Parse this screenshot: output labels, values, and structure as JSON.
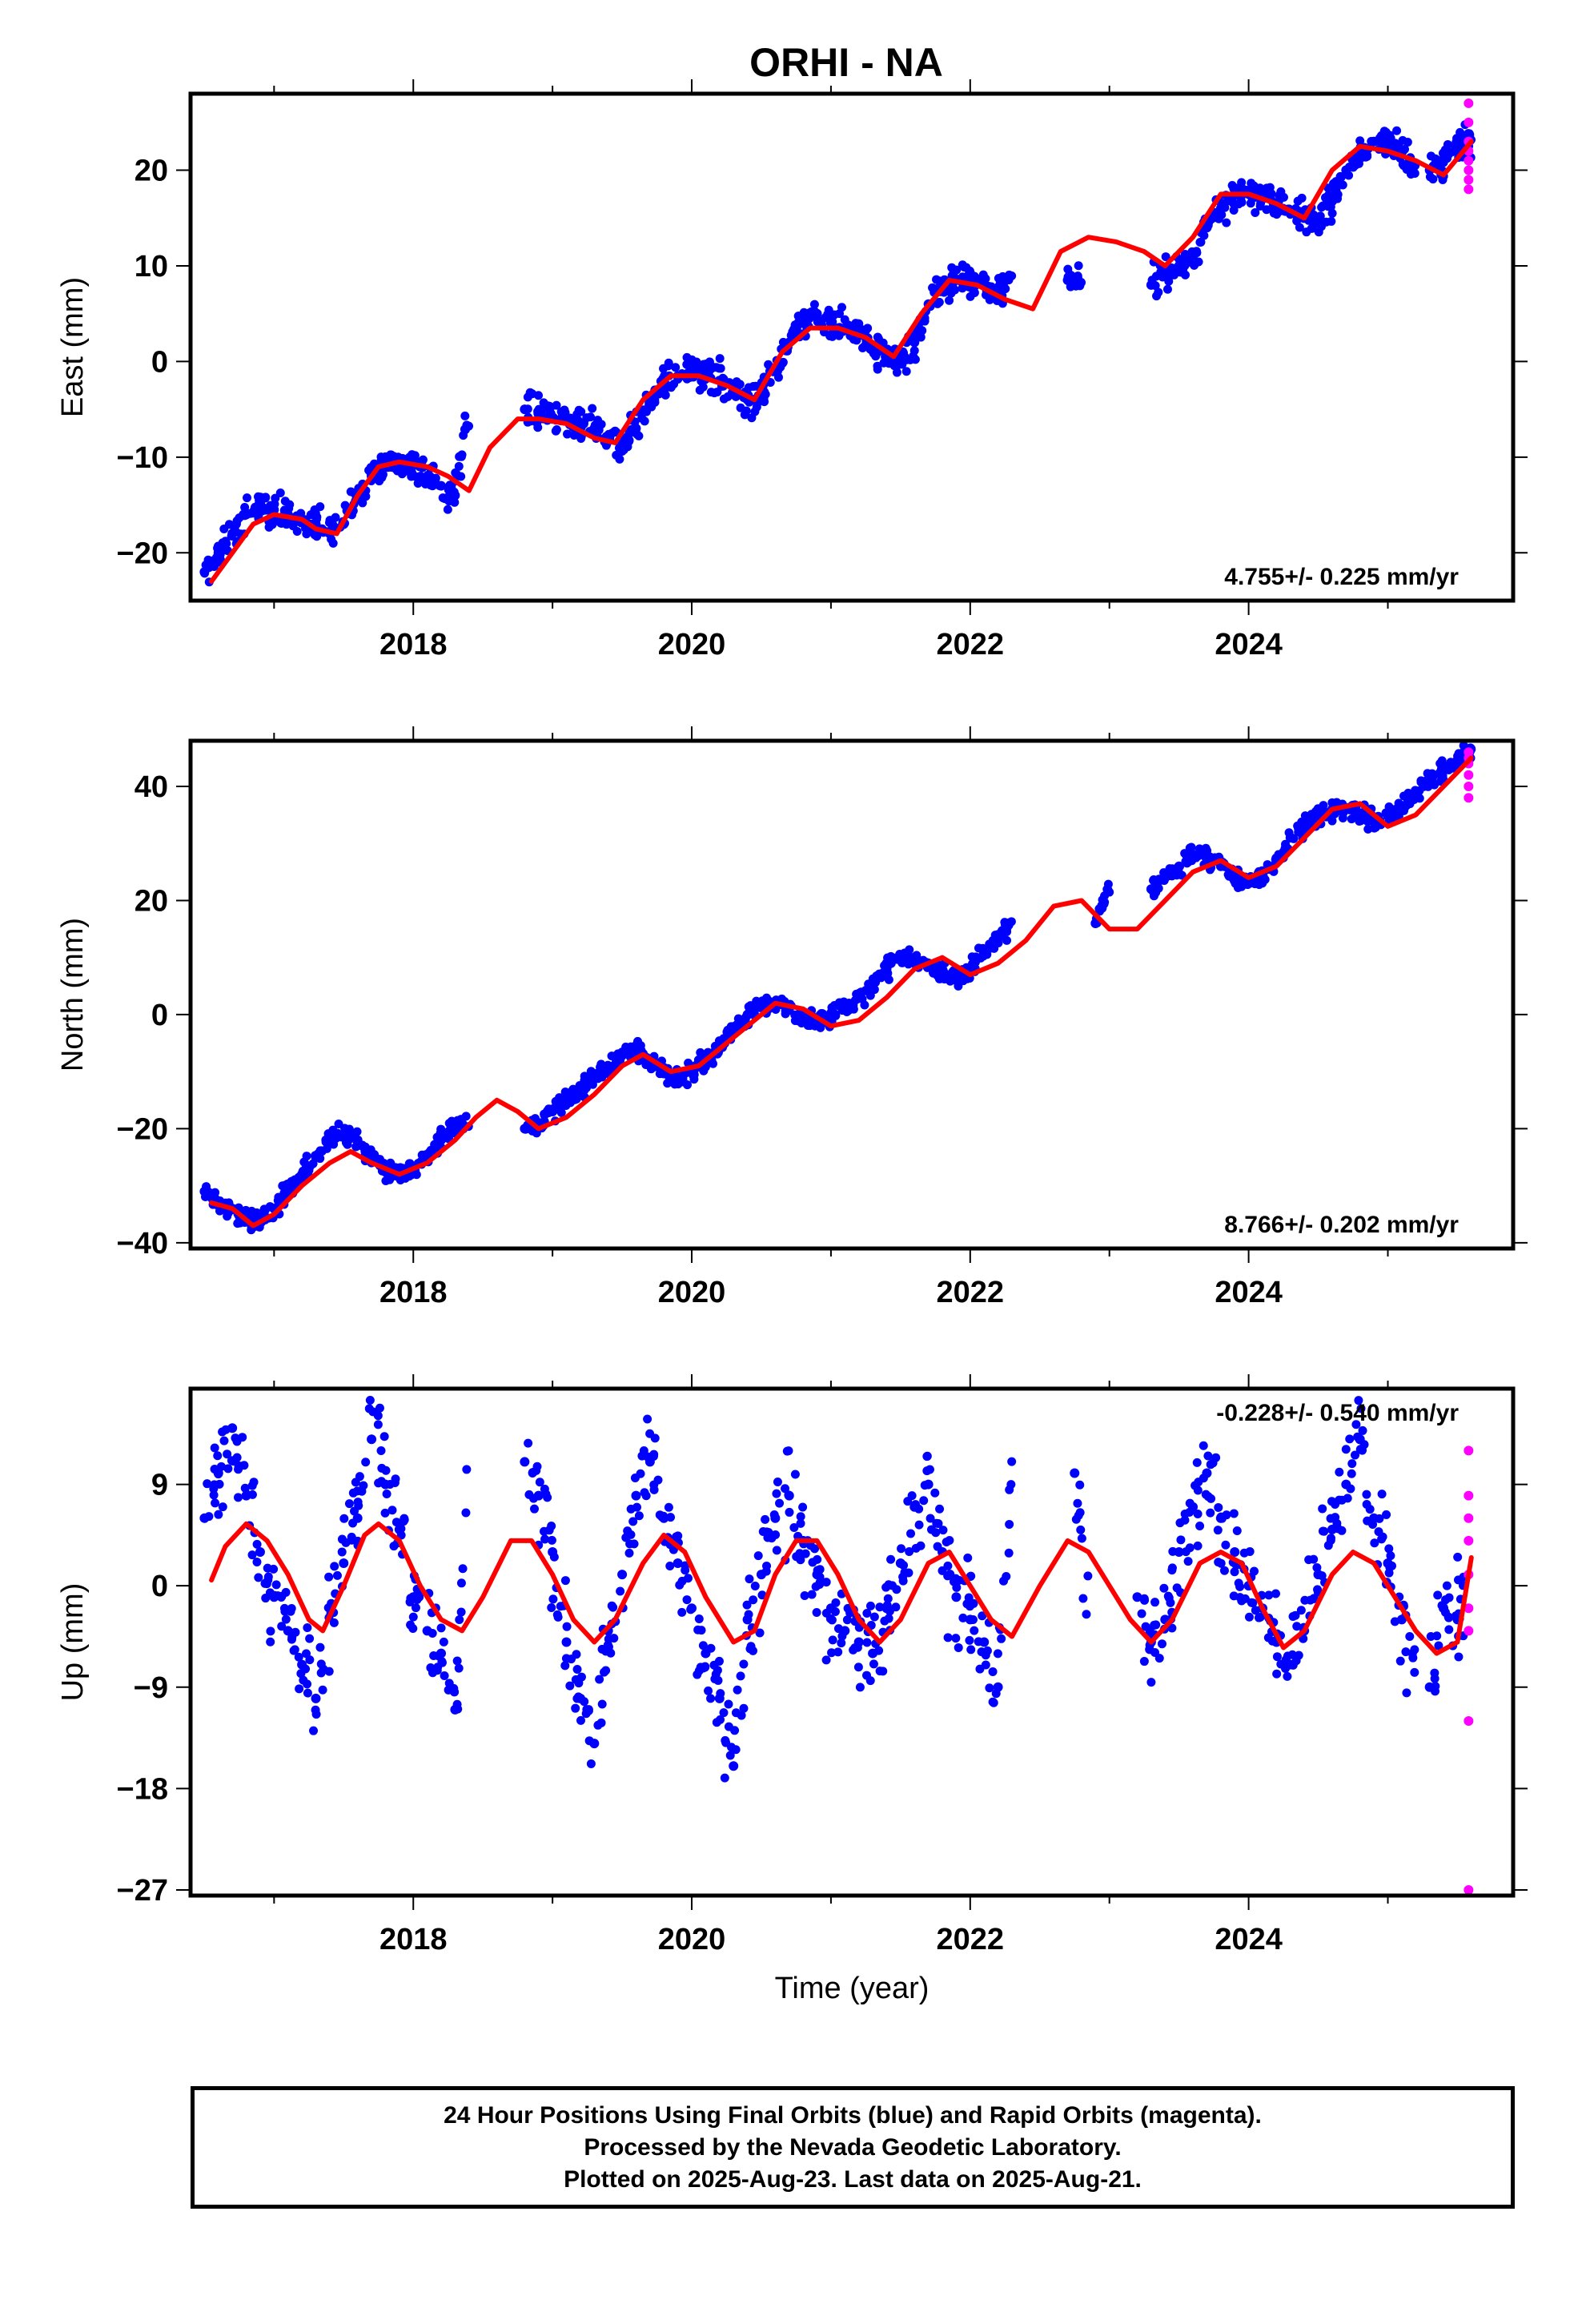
{
  "title": "ORHI - NA",
  "footer": {
    "line1": "24 Hour Positions Using Final Orbits (blue) and Rapid Orbits (magenta).",
    "line2": "Processed by the Nevada Geodetic Laboratory.",
    "line3": "Plotted on 2025-Aug-23. Last data on 2025-Aug-21."
  },
  "colors": {
    "final_orbits": "#0000ff",
    "rapid_orbits": "#ff00ff",
    "model_fit": "#ff0000",
    "frame": "#000000"
  },
  "chart_data": [
    {
      "type": "scatter",
      "panel": "east",
      "ylabel": "East (mm)",
      "xlabel": "",
      "xlim": [
        2016.4,
        2025.9
      ],
      "ylim": [
        -25,
        28
      ],
      "xticks": [
        2018,
        2020,
        2022,
        2024
      ],
      "yticks": [
        -20,
        -10,
        0,
        10,
        20
      ],
      "rate_text": "4.755+/- 0.225 mm/yr",
      "grid": false,
      "series": [
        {
          "kind": "model_fit",
          "x": [
            2016.55,
            2016.85,
            2017.0,
            2017.2,
            2017.3,
            2017.45,
            2017.6,
            2017.75,
            2017.9,
            2018.1,
            2018.25,
            2018.4,
            2018.55,
            2018.75,
            2018.9,
            2019.1,
            2019.3,
            2019.45,
            2019.65,
            2019.85,
            2020.05,
            2020.25,
            2020.45,
            2020.65,
            2020.85,
            2021.05,
            2021.25,
            2021.45,
            2021.65,
            2021.85,
            2022.05,
            2022.25,
            2022.45,
            2022.65,
            2022.85,
            2023.05,
            2023.25,
            2023.4,
            2023.6,
            2023.8,
            2024.0,
            2024.2,
            2024.4,
            2024.6,
            2024.8,
            2025.0,
            2025.2,
            2025.4,
            2025.6
          ],
          "y": [
            -23,
            -17,
            -16,
            -16.5,
            -17.5,
            -18,
            -14,
            -11,
            -10.5,
            -11,
            -12,
            -13.5,
            -9,
            -6,
            -6,
            -6.5,
            -8,
            -8.5,
            -4,
            -1.5,
            -1.5,
            -2.5,
            -4,
            1,
            3.5,
            3.5,
            2.5,
            0.5,
            5,
            8.5,
            8,
            6.5,
            5.5,
            11.5,
            13,
            12.5,
            11.5,
            10,
            13,
            17.5,
            17.5,
            16.5,
            15,
            20,
            22.5,
            22,
            21,
            19.5,
            23
          ]
        },
        {
          "kind": "final",
          "x": [
            2016.5,
            2016.6,
            2016.7,
            2016.8,
            2016.9,
            2017.0,
            2017.1,
            2017.2,
            2017.3,
            2017.4,
            2017.5,
            2017.6,
            2017.7,
            2017.8,
            2017.9,
            2018.0,
            2018.1,
            2018.2,
            2018.3,
            2018.8,
            2018.9,
            2019.0,
            2019.1,
            2019.2,
            2019.3,
            2019.4,
            2019.5,
            2019.6,
            2019.7,
            2019.8,
            2019.9,
            2020.0,
            2020.1,
            2020.2,
            2020.3,
            2020.4,
            2020.5,
            2020.6,
            2020.7,
            2020.8,
            2020.9,
            2021.0,
            2021.1,
            2021.2,
            2021.3,
            2021.4,
            2021.5,
            2021.6,
            2021.7,
            2021.8,
            2021.9,
            2022.0,
            2022.1,
            2022.2,
            2022.7,
            2023.3,
            2023.4,
            2023.5,
            2023.6,
            2023.7,
            2023.8,
            2023.9,
            2024.0,
            2024.1,
            2024.2,
            2024.3,
            2024.4,
            2024.5,
            2024.6,
            2024.7,
            2024.8,
            2024.9,
            2025.0,
            2025.1,
            2025.3,
            2025.4,
            2025.5,
            2025.55
          ],
          "y": [
            -22,
            -20,
            -18,
            -16,
            -15,
            -15.5,
            -16,
            -16.5,
            -17,
            -18,
            -17,
            -14,
            -12,
            -10,
            -11,
            -10.5,
            -12,
            -13,
            -14,
            -5,
            -5.5,
            -6,
            -6,
            -6.5,
            -7,
            -8,
            -8.5,
            -7,
            -4,
            -2,
            -1.5,
            -1,
            -1.5,
            -2,
            -3,
            -4,
            -3.5,
            -1,
            2,
            4,
            5,
            4,
            3.5,
            3,
            1.5,
            0.5,
            0,
            2,
            6,
            7.5,
            8.5,
            8.5,
            8,
            7,
            8.5,
            8,
            9,
            10,
            11,
            14,
            16,
            17.5,
            17.5,
            17,
            16.5,
            15.5,
            15,
            14.5,
            17,
            20,
            22,
            23,
            23,
            22,
            20,
            21,
            22,
            23
          ]
        },
        {
          "kind": "rapid",
          "x": [
            2025.58,
            2025.58,
            2025.58,
            2025.58,
            2025.58,
            2025.58,
            2025.58,
            2025.58
          ],
          "y": [
            27,
            25,
            23,
            22,
            21,
            20,
            19,
            18
          ]
        }
      ]
    },
    {
      "type": "scatter",
      "panel": "north",
      "ylabel": "North (mm)",
      "xlabel": "",
      "xlim": [
        2016.4,
        2025.9
      ],
      "ylim": [
        -41,
        48
      ],
      "xticks": [
        2018,
        2020,
        2022,
        2024
      ],
      "yticks": [
        -40,
        -20,
        0,
        20,
        40
      ],
      "rate_text": "8.766+/- 0.202 mm/yr",
      "grid": false,
      "series": [
        {
          "kind": "model_fit",
          "x": [
            2016.55,
            2016.7,
            2016.85,
            2017.0,
            2017.2,
            2017.4,
            2017.55,
            2017.7,
            2017.9,
            2018.1,
            2018.3,
            2018.45,
            2018.6,
            2018.75,
            2018.9,
            2019.1,
            2019.3,
            2019.5,
            2019.65,
            2019.85,
            2020.05,
            2020.25,
            2020.45,
            2020.6,
            2020.8,
            2021.0,
            2021.2,
            2021.4,
            2021.6,
            2021.8,
            2022.0,
            2022.2,
            2022.4,
            2022.6,
            2022.8,
            2023.0,
            2023.2,
            2023.4,
            2023.6,
            2023.8,
            2024.0,
            2024.2,
            2024.4,
            2024.6,
            2024.8,
            2025.0,
            2025.2,
            2025.4,
            2025.6
          ],
          "y": [
            -33,
            -34,
            -37,
            -35,
            -30,
            -26,
            -24,
            -26,
            -28,
            -26,
            -22,
            -18,
            -15,
            -17,
            -20,
            -18,
            -14,
            -9,
            -7,
            -10,
            -9,
            -5,
            -1,
            2,
            1,
            -2,
            -1,
            3,
            8,
            10,
            7,
            9,
            13,
            19,
            20,
            15,
            15,
            20,
            25,
            27,
            24,
            26,
            31,
            36,
            37,
            33,
            35,
            40,
            45
          ]
        },
        {
          "kind": "final",
          "x": [
            2016.5,
            2016.6,
            2016.7,
            2016.8,
            2016.9,
            2017.0,
            2017.1,
            2017.2,
            2017.3,
            2017.4,
            2017.5,
            2017.6,
            2017.7,
            2017.8,
            2017.9,
            2018.0,
            2018.1,
            2018.2,
            2018.3,
            2018.8,
            2018.9,
            2019.0,
            2019.1,
            2019.2,
            2019.3,
            2019.4,
            2019.5,
            2019.6,
            2019.7,
            2019.8,
            2019.9,
            2020.0,
            2020.1,
            2020.2,
            2020.3,
            2020.4,
            2020.5,
            2020.6,
            2020.7,
            2020.8,
            2020.9,
            2021.0,
            2021.1,
            2021.2,
            2021.3,
            2021.4,
            2021.5,
            2021.6,
            2021.7,
            2021.8,
            2021.9,
            2022.0,
            2022.1,
            2022.2,
            2022.9,
            2023.3,
            2023.4,
            2023.5,
            2023.6,
            2023.7,
            2023.8,
            2023.9,
            2024.0,
            2024.1,
            2024.2,
            2024.3,
            2024.4,
            2024.5,
            2024.6,
            2024.7,
            2024.8,
            2024.9,
            2025.0,
            2025.1,
            2025.2,
            2025.3,
            2025.4,
            2025.5,
            2025.55
          ],
          "y": [
            -31,
            -33,
            -34,
            -36,
            -36,
            -34,
            -31,
            -28,
            -25,
            -22,
            -21,
            -22,
            -25,
            -27,
            -28,
            -27,
            -25,
            -22,
            -19,
            -20,
            -19,
            -17,
            -15,
            -13,
            -11,
            -9,
            -7,
            -6,
            -8,
            -10,
            -11,
            -10,
            -8,
            -6,
            -3,
            0,
            2,
            2,
            1,
            -1,
            -1,
            0,
            1,
            3,
            5,
            8,
            10,
            10,
            9,
            7,
            6,
            8,
            11,
            14,
            16,
            22,
            24,
            26,
            28,
            28,
            26,
            24,
            23,
            24,
            27,
            31,
            33,
            35,
            36,
            36,
            35,
            34,
            35,
            36,
            39,
            41,
            43,
            44,
            46
          ]
        },
        {
          "kind": "rapid",
          "x": [
            2025.58,
            2025.58,
            2025.58,
            2025.58,
            2025.58,
            2025.58
          ],
          "y": [
            46,
            45,
            44,
            42,
            40,
            38
          ]
        }
      ]
    },
    {
      "type": "scatter",
      "panel": "up",
      "ylabel": "Up (mm)",
      "xlabel": "Time (year)",
      "xlim": [
        2016.4,
        2025.9
      ],
      "ylim": [
        -27.5,
        17.5
      ],
      "xticks": [
        2018,
        2020,
        2022,
        2024
      ],
      "yticks": [
        -27,
        -18,
        -9,
        0,
        9
      ],
      "rate_text": "-0.228+/- 0.540 mm/yr",
      "grid": false,
      "series": [
        {
          "kind": "model_fit",
          "x": [
            2016.55,
            2016.65,
            2016.8,
            2016.95,
            2017.1,
            2017.25,
            2017.35,
            2017.5,
            2017.65,
            2017.75,
            2017.9,
            2018.05,
            2018.2,
            2018.35,
            2018.5,
            2018.7,
            2018.85,
            2019.0,
            2019.15,
            2019.3,
            2019.45,
            2019.65,
            2019.8,
            2019.95,
            2020.1,
            2020.3,
            2020.45,
            2020.6,
            2020.75,
            2020.9,
            2021.05,
            2021.2,
            2021.35,
            2021.5,
            2021.7,
            2021.85,
            2022.0,
            2022.15,
            2022.3,
            2022.5,
            2022.7,
            2022.85,
            2023.0,
            2023.15,
            2023.3,
            2023.45,
            2023.65,
            2023.8,
            2023.95,
            2024.1,
            2024.25,
            2024.4,
            2024.6,
            2024.75,
            2024.9,
            2025.05,
            2025.2,
            2025.35,
            2025.5,
            2025.6
          ],
          "y": [
            0.5,
            3.5,
            5.5,
            4,
            1,
            -3,
            -4,
            0,
            4.5,
            5.5,
            4,
            0,
            -3,
            -4,
            -1,
            4,
            4,
            1,
            -3,
            -5,
            -3,
            2,
            4.5,
            3,
            -1,
            -5,
            -4,
            1,
            4,
            4,
            1,
            -3,
            -5,
            -3,
            2,
            3,
            0,
            -3,
            -4.5,
            0,
            4,
            3,
            0,
            -3,
            -5,
            -3,
            2,
            3,
            2,
            -2,
            -5.5,
            -4,
            1,
            3,
            2,
            -1,
            -4,
            -6,
            -5,
            2.5
          ]
        },
        {
          "kind": "final",
          "x": [
            2016.5,
            2016.6,
            2016.7,
            2016.8,
            2016.9,
            2017.0,
            2017.1,
            2017.2,
            2017.3,
            2017.4,
            2017.5,
            2017.6,
            2017.7,
            2017.8,
            2017.9,
            2018.0,
            2018.1,
            2018.2,
            2018.3,
            2018.8,
            2018.9,
            2019.0,
            2019.1,
            2019.2,
            2019.3,
            2019.4,
            2019.5,
            2019.6,
            2019.7,
            2019.8,
            2019.9,
            2020.0,
            2020.1,
            2020.2,
            2020.3,
            2020.4,
            2020.5,
            2020.6,
            2020.7,
            2020.8,
            2020.9,
            2021.0,
            2021.1,
            2021.2,
            2021.3,
            2021.4,
            2021.5,
            2021.6,
            2021.7,
            2021.8,
            2021.9,
            2022.0,
            2022.1,
            2022.2,
            2022.75,
            2023.2,
            2023.3,
            2023.4,
            2023.5,
            2023.6,
            2023.7,
            2023.8,
            2023.9,
            2024.0,
            2024.1,
            2024.2,
            2024.3,
            2024.4,
            2024.5,
            2024.6,
            2024.7,
            2024.8,
            2024.9,
            2025.0,
            2025.1,
            2025.3,
            2025.4,
            2025.5
          ],
          "y": [
            6,
            10,
            14,
            8,
            3,
            -1,
            -4,
            -7,
            -10,
            -2,
            2,
            6,
            13,
            9,
            5,
            -1,
            -4,
            -6,
            -11,
            11,
            8,
            3,
            -5,
            -10,
            -14,
            -4,
            1,
            8,
            11,
            6,
            2,
            -2,
            -6,
            -10,
            -16,
            -3,
            1,
            6,
            8,
            4,
            1,
            -2,
            -4,
            -5,
            -6,
            -2,
            2,
            7,
            9,
            3,
            -1,
            -3,
            -5,
            -9,
            10,
            -1,
            -5,
            -3,
            3,
            7,
            10,
            6,
            3,
            0,
            -2,
            -5,
            -7,
            -4,
            1,
            5,
            9,
            13,
            6,
            2,
            -3,
            -9,
            -2,
            -3
          ]
        },
        {
          "kind": "rapid",
          "x": [
            2025.58,
            2025.58,
            2025.58,
            2025.58,
            2025.58,
            2025.58,
            2025.58,
            2025.58,
            2025.58
          ],
          "y": [
            12,
            8,
            6,
            4,
            1,
            -2,
            -4,
            -12,
            -27
          ]
        }
      ]
    }
  ]
}
